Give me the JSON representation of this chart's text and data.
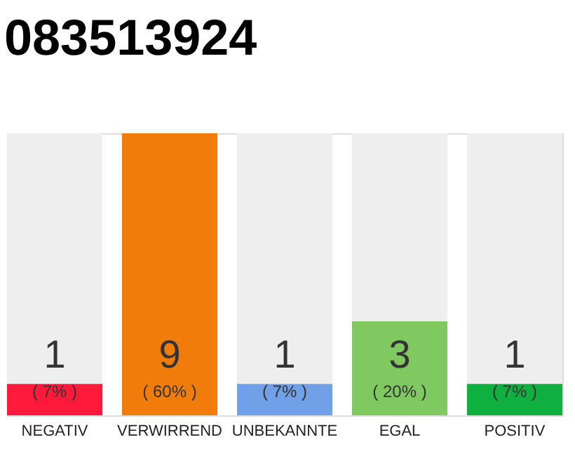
{
  "chart_data": {
    "type": "bar",
    "title": "083513924",
    "categories": [
      "NEGATIV",
      "VERWIRREND",
      "UNBEKANNTE",
      "EGAL",
      "POSITIV"
    ],
    "values": [
      1,
      9,
      1,
      3,
      1
    ],
    "colors": [
      "#ff1a3c",
      "#f07d0a",
      "#6fa0e8",
      "#80c860",
      "#10b040"
    ],
    "data_labels": true,
    "annotations": [
      "( 7% )",
      "( 60% )",
      "( 7% )",
      "( 20% )",
      "( 7% )"
    ],
    "ylim": [
      0,
      9
    ],
    "tick_labels": "x",
    "grid": false
  }
}
